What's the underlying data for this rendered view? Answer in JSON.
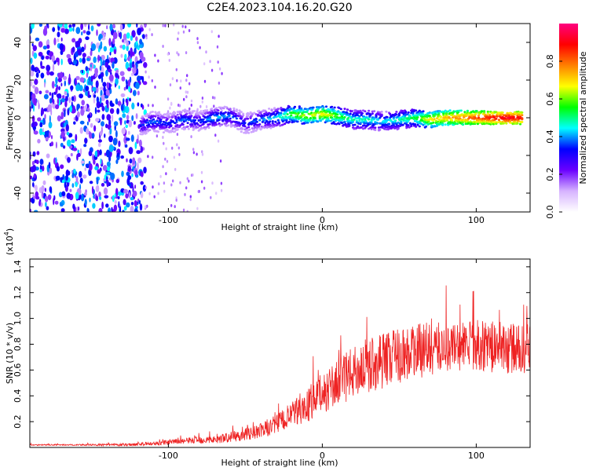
{
  "title": "C2E4.2023.104.16.20.G20",
  "chart_data": [
    {
      "type": "heatmap",
      "xlabel": "Height of straight line (km)",
      "ylabel": "Frequency (Hz)",
      "xlim": [
        -190,
        135
      ],
      "ylim": [
        -50,
        50
      ],
      "xticks": [
        -100,
        0,
        100
      ],
      "yticks": [
        -40,
        -20,
        0,
        20,
        40
      ],
      "grid": false,
      "colorbar": {
        "label": "Normalized spectral amplitude",
        "range": [
          0,
          1
        ],
        "ticks": [
          0.0,
          0.2,
          0.4,
          0.6,
          0.8
        ],
        "tick_labels": [
          "0.0",
          "0.2",
          "0.4",
          "0.6",
          "0.8"
        ],
        "colors": [
          "#ffffff",
          "#d6b3ff",
          "#6a00ff",
          "#0000ff",
          "#00ffff",
          "#00ff00",
          "#ffff00",
          "#ff8000",
          "#ff0000",
          "#ff0080"
        ]
      },
      "signal_track": {
        "x": [
          -118,
          -110,
          -100,
          -90,
          -80,
          -70,
          -60,
          -50,
          -40,
          -30,
          -20,
          -10,
          0,
          10,
          20,
          30,
          40,
          50,
          60,
          70,
          80,
          90,
          100,
          110,
          120,
          130
        ],
        "frequency": [
          -4,
          -2,
          -3,
          -1,
          -2,
          0,
          1,
          -3,
          -1,
          0,
          2,
          1,
          2,
          1,
          -1,
          -1,
          -2,
          -1,
          0,
          -1,
          0,
          0,
          0,
          0,
          0,
          0
        ],
        "amplitude": [
          0.35,
          0.4,
          0.35,
          0.4,
          0.35,
          0.45,
          0.4,
          0.35,
          0.4,
          0.45,
          0.6,
          0.65,
          0.7,
          0.6,
          0.5,
          0.5,
          0.45,
          0.5,
          0.55,
          0.7,
          0.75,
          0.8,
          0.85,
          0.9,
          0.95,
          0.9
        ]
      },
      "noise_region_x": [
        -190,
        -115
      ]
    },
    {
      "type": "line",
      "xlabel": "Height of straight line (km)",
      "ylabel": "SNR (10 * v/v)",
      "yscale_label": "(x10",
      "yscale_exponent": "4",
      "yscale_suffix": ")",
      "xlim": [
        -190,
        135
      ],
      "ylim": [
        0,
        1.46
      ],
      "xticks": [
        -100,
        0,
        100
      ],
      "yticks": [
        0.2,
        0.4,
        0.6,
        0.8,
        1.0,
        1.2,
        1.4
      ],
      "grid": false,
      "series": [
        {
          "color": "#ee2222",
          "x": [
            -190,
            -160,
            -130,
            -110,
            -100,
            -90,
            -80,
            -70,
            -60,
            -50,
            -40,
            -30,
            -20,
            -10,
            0,
            10,
            20,
            30,
            40,
            50,
            60,
            70,
            80,
            90,
            100,
            110,
            120,
            130,
            135
          ],
          "y": [
            0.02,
            0.02,
            0.02,
            0.03,
            0.04,
            0.05,
            0.06,
            0.06,
            0.08,
            0.1,
            0.13,
            0.18,
            0.25,
            0.32,
            0.42,
            0.5,
            0.58,
            0.64,
            0.68,
            0.72,
            0.74,
            0.76,
            0.78,
            0.78,
            0.8,
            0.78,
            0.77,
            0.76,
            0.76
          ],
          "spread": [
            0.005,
            0.005,
            0.01,
            0.015,
            0.02,
            0.02,
            0.03,
            0.03,
            0.04,
            0.05,
            0.06,
            0.08,
            0.1,
            0.13,
            0.16,
            0.18,
            0.2,
            0.22,
            0.22,
            0.22,
            0.22,
            0.2,
            0.2,
            0.2,
            0.2,
            0.2,
            0.2,
            0.2,
            0.2
          ]
        }
      ]
    }
  ]
}
